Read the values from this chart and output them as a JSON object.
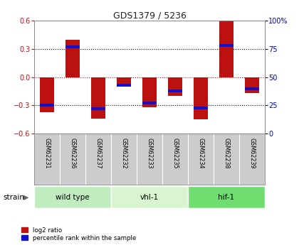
{
  "title": "GDS1379 / 5236",
  "samples": [
    "GSM62231",
    "GSM62236",
    "GSM62237",
    "GSM62232",
    "GSM62233",
    "GSM62235",
    "GSM62234",
    "GSM62238",
    "GSM62239"
  ],
  "log2_ratio": [
    -0.37,
    0.4,
    -0.44,
    -0.1,
    -0.32,
    -0.2,
    -0.45,
    0.6,
    -0.17
  ],
  "percentile_rank": [
    25,
    77,
    22,
    43,
    27,
    38,
    23,
    78,
    40
  ],
  "groups": [
    {
      "label": "wild type",
      "indices": [
        0,
        1,
        2
      ],
      "color": "#c0ecc0"
    },
    {
      "label": "vhl-1",
      "indices": [
        3,
        4,
        5
      ],
      "color": "#d8f5d0"
    },
    {
      "label": "hif-1",
      "indices": [
        6,
        7,
        8
      ],
      "color": "#70dd70"
    }
  ],
  "ylim": [
    -0.6,
    0.6
  ],
  "yticks": [
    -0.6,
    -0.3,
    0.0,
    0.3,
    0.6
  ],
  "right_yticks": [
    0,
    25,
    50,
    75,
    100
  ],
  "bar_color_red": "#bb1111",
  "bar_color_blue": "#1111cc",
  "grid_color": "#000000",
  "hline_color": "#dd0000",
  "bg_color": "#ffffff",
  "plot_bg": "#ffffff",
  "label_bg": "#cccccc",
  "legend_red": "log2 ratio",
  "legend_blue": "percentile rank within the sample",
  "strain_label": "strain",
  "bar_width": 0.55
}
